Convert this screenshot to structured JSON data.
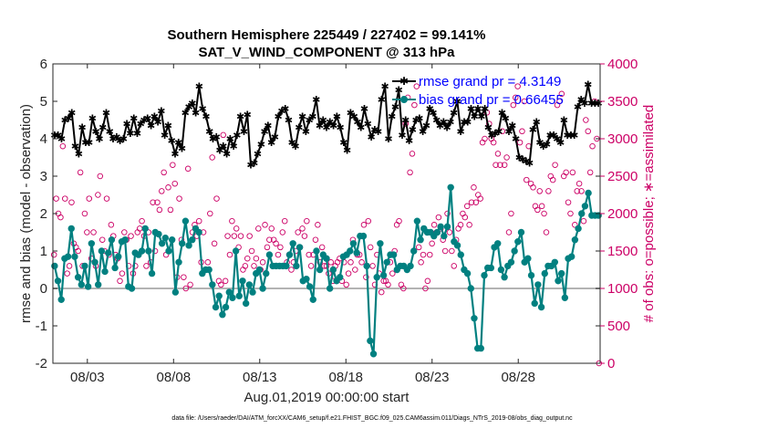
{
  "chart_data": {
    "type": "line",
    "title": [
      "Southern Hemisphere 225449 / 227402 = 99.141%",
      "SAT_V_WIND_COMPONENT @ 313 hPa"
    ],
    "xlabel": "Aug.01,2019 00:00:00 start",
    "ylabel_left": "rmse and bias (model - observation)",
    "ylabel_right": "# of obs: o=possible; ∗=assimilated",
    "footnote": "data file: /Users/raeder/DAI/ATM_forcXX/CAM6_setup/f.e21.FHIST_BGC.f09_025.CAM6assim.011/Diags_NTrS_2019-08/obs_diag_output.nc",
    "x_range_days": [
      0,
      31.75
    ],
    "xticks": [
      {
        "day": 2,
        "label": "08/03"
      },
      {
        "day": 7,
        "label": "08/08"
      },
      {
        "day": 12,
        "label": "08/13"
      },
      {
        "day": 17,
        "label": "08/18"
      },
      {
        "day": 22,
        "label": "08/23"
      },
      {
        "day": 27,
        "label": "08/28"
      }
    ],
    "ylim_left": [
      -2,
      6
    ],
    "yticks_left": [
      -2,
      -1,
      0,
      1,
      2,
      3,
      4,
      5,
      6
    ],
    "ylim_right": [
      0,
      4000
    ],
    "yticks_right": [
      0,
      500,
      1000,
      1500,
      2000,
      2500,
      3000,
      3500,
      4000
    ],
    "zero_line": 0,
    "colors": {
      "rmse": "#000000",
      "bias": "#008080",
      "obs": "#cc0066",
      "zero": "#b3b3b3",
      "legend_text": "#0000ff"
    },
    "series": [
      {
        "name": "rmse grand pr = 4.3149",
        "color": "#000000",
        "values": [
          4.1,
          4.1,
          4.0,
          4.5,
          4.55,
          4.7,
          3.8,
          3.6,
          4.3,
          3.9,
          3.9,
          4.55,
          4.2,
          4.0,
          4.3,
          4.7,
          4.2,
          4.0,
          4.05,
          3.95,
          4.0,
          4.4,
          4.15,
          4.55,
          4.15,
          4.4,
          4.5,
          4.55,
          4.35,
          4.6,
          4.45,
          4.75,
          4.1,
          4.35,
          3.95,
          3.6,
          3.9,
          3.75,
          4.7,
          4.85,
          4.95,
          4.7,
          5.4,
          4.8,
          4.6,
          4.2,
          4.0,
          4.05,
          3.7,
          3.8,
          3.6,
          4.0,
          3.8,
          4.1,
          4.6,
          4.2,
          4.65,
          3.3,
          3.35,
          3.6,
          3.85,
          4.2,
          4.35,
          3.9,
          4.05,
          4.6,
          4.75,
          4.8,
          4.5,
          3.9,
          3.8,
          4.3,
          4.6,
          4.2,
          4.5,
          4.6,
          5.05,
          4.35,
          4.5,
          4.3,
          4.45,
          4.35,
          4.6,
          4.3,
          3.9,
          3.7,
          4.7,
          4.6,
          4.45,
          4.3,
          4.8,
          4.4,
          4.05,
          4.25,
          4.2,
          5.05,
          5.4,
          4.0,
          4.6,
          4.85,
          5.3,
          4.1,
          4.5,
          3.95,
          4.25,
          4.5,
          4.55,
          4.2,
          4.35,
          4.8,
          4.7,
          4.5,
          4.35,
          4.45,
          4.3,
          4.45,
          4.7,
          5.0,
          4.2,
          4.45,
          4.45,
          4.8,
          4.6,
          4.8,
          4.6,
          4.8,
          4.3,
          4.1,
          4.15,
          4.2,
          4.7,
          4.55,
          4.2,
          4.35,
          4.0,
          3.5,
          3.45,
          3.4,
          3.35,
          4.25,
          4.45,
          3.9,
          3.8,
          3.85,
          4.1,
          4.1,
          4.0,
          3.9,
          4.5,
          4.1,
          4.1,
          4.1,
          4.85,
          5.05,
          4.95,
          5.45,
          4.95,
          4.95,
          4.95
        ]
      },
      {
        "name": "bias grand pr = 0.66455",
        "color": "#008080",
        "values": [
          0.6,
          0.2,
          -0.3,
          0.8,
          0.85,
          1.6,
          0.85,
          0.3,
          0.1,
          0.6,
          0.05,
          1.2,
          0.7,
          0.1,
          1.0,
          0.45,
          0.95,
          1.3,
          0.55,
          0.85,
          1.25,
          1.3,
          0.05,
          0.0,
          0.95,
          0.9,
          1.0,
          1.6,
          1.0,
          0.4,
          1.5,
          1.45,
          1.2,
          1.35,
          1.0,
          1.3,
          -0.1,
          0.7,
          1.2,
          1.8,
          1.15,
          1.3,
          1.6,
          1.5,
          0.4,
          0.5,
          0.5,
          0.1,
          -0.5,
          -0.2,
          -0.7,
          -0.5,
          -0.1,
          -0.25,
          1.0,
          -0.2,
          0.2,
          -0.4,
          0.1,
          -0.1,
          0.4,
          0.5,
          0.0,
          0.4,
          0.9,
          0.6,
          0.6,
          0.6,
          0.6,
          0.6,
          0.9,
          1.2,
          0.6,
          1.1,
          0.2,
          0.25,
          0.05,
          -0.3,
          1.0,
          0.5,
          0.9,
          0.8,
          0.0,
          0.5,
          0.2,
          0.3,
          0.85,
          0.9,
          1.0,
          1.2,
          0.95,
          1.4,
          1.4,
          0.6,
          -1.4,
          -1.75,
          0.3,
          1.2,
          0.35,
          0.7,
          0.9,
          0.9,
          0.5,
          0.6,
          0.6,
          0.5,
          0.6,
          1.0,
          1.8,
          1.3,
          1.6,
          1.5,
          1.5,
          1.4,
          1.5,
          1.65,
          1.4,
          1.65,
          2.7,
          1.25,
          1.15,
          0.9,
          0.5,
          0.4,
          0.0,
          -0.8,
          -1.6,
          -1.6,
          0.35,
          0.55,
          0.55,
          1.1,
          1.2,
          0.5,
          0.3,
          0.6,
          0.7,
          1.0,
          1.25,
          1.5,
          0.7,
          0.8,
          0.35,
          -0.4,
          0.1,
          -0.5,
          0.4,
          0.6,
          0.6,
          0.7,
          0.2,
          0.4,
          -0.25,
          0.8,
          0.85,
          1.3,
          1.6,
          2.0,
          2.2,
          2.55,
          1.95,
          1.95,
          1.95
        ]
      },
      {
        "name": "# of obs possible / assimilated",
        "color": "#cc0066",
        "values": [
          1450,
          2200,
          2000,
          1950,
          2900,
          2200,
          1200,
          1300,
          2150,
          1600,
          1550,
          1500,
          2550,
          1300,
          2000,
          1750,
          2200,
          1400,
          1750,
          1300,
          2250,
          2500,
          1650,
          1500,
          2200,
          1450,
          1850,
          1700,
          1450,
          1400,
          1100,
          1200,
          1750,
          1650,
          1300,
          1700,
          1200,
          1300,
          1750,
          1800,
          1900,
          1700,
          1300,
          1750,
          1350,
          2150,
          1500,
          2150,
          2050,
          2300,
          2550,
          1450,
          2350,
          2050,
          2650,
          2400,
          1150,
          2200,
          1650,
          1150,
          1000,
          2600,
          1050,
          1750,
          1850,
          1700,
          1900,
          1350,
          1750,
          1250,
          1350,
          2000,
          2750,
          1600,
          2200,
          1100,
          1050,
          3050,
          1100,
          1700,
          1450,
          1900,
          1700,
          1800,
          1550,
          1700,
          1250,
          1300,
          1400,
          1700,
          1500,
          1300,
          1400,
          1800,
          1250,
          1350,
          1850,
          1550,
          1650,
          1800,
          1650,
          1600,
          1450,
          1550,
          1750,
          1900,
          1350,
          1450,
          1250,
          1350,
          1500,
          1750,
          1550,
          1800,
          1700,
          1900,
          1450,
          1300,
          1450,
          1650,
          1850,
          1350,
          1550,
          1300,
          1300,
          1200,
          1350,
          1100,
          1300,
          1350,
          1400,
          1100,
          1350,
          1050,
          1200,
          1350,
          1650,
          1250,
          1450,
          1450,
          1350,
          1850,
          1150,
          1900,
          1550,
          1300,
          1050,
          1450,
          1200,
          950,
          1100,
          1100,
          1050,
          1350,
          1200,
          1500,
          1850,
          1900,
          1050,
          1000,
          3200,
          3550,
          2550,
          2800,
          3450,
          3700,
          1550,
          1350,
          1450,
          1000,
          1100,
          1450,
          1600,
          1850,
          1750,
          1950,
          1800,
          1650,
          1500,
          2000,
          1750,
          1500,
          1300,
          1650,
          1800,
          1850,
          2000,
          1950,
          2100,
          1850,
          2150,
          2350,
          2150,
          2250,
          2200,
          2950,
          3000,
          3350,
          3200,
          3000,
          2950,
          2650,
          2800,
          2650,
          3100,
          2650,
          2750,
          1750,
          2000,
          3450,
          3550,
          3700,
          2950,
          3100,
          3500,
          2450,
          2900,
          2400,
          2350,
          2100,
          2050,
          2300,
          2100,
          2000,
          1750,
          2300,
          2500,
          2450,
          2650,
          3450,
          3500,
          3600,
          2500,
          2550,
          2150,
          2000,
          2550,
          1850,
          2300,
          2400,
          2300,
          1900,
          3250,
          3100,
          2550,
          2900,
          3500,
          3000,
          0
        ]
      }
    ]
  }
}
